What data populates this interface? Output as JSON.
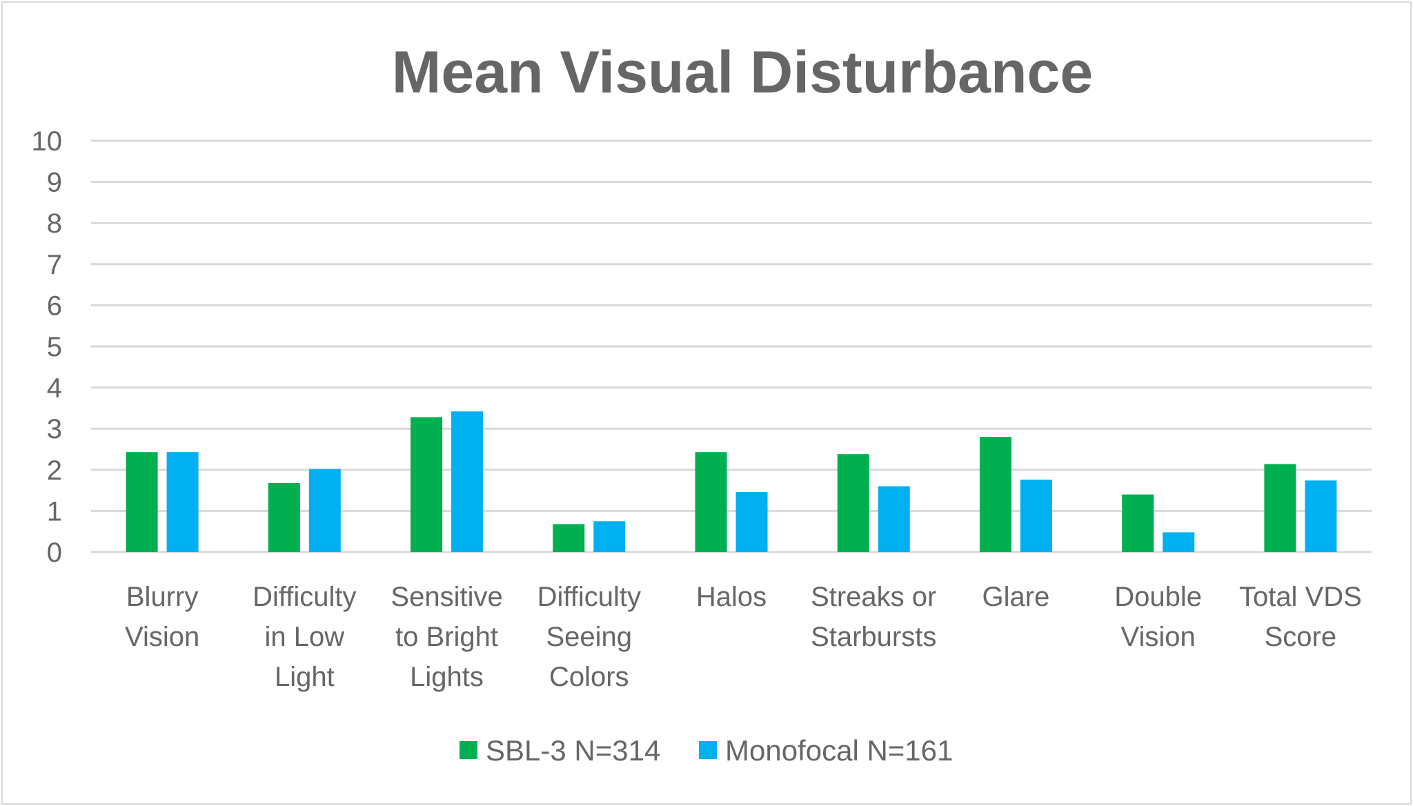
{
  "chart_data": {
    "type": "bar",
    "title": "Mean Visual Disturbance",
    "xlabel": "",
    "ylabel": "",
    "ylim": [
      0,
      10
    ],
    "yticks": [
      "0",
      "1",
      "2",
      "3",
      "4",
      "5",
      "6",
      "7",
      "8",
      "9",
      "10"
    ],
    "grid": true,
    "legend_position": "bottom",
    "categories": [
      [
        "Blurry",
        "Vision"
      ],
      [
        "Difficulty",
        "in Low",
        "Light"
      ],
      [
        "Sensitive",
        "to Bright",
        "Lights"
      ],
      [
        "Difficulty",
        "Seeing",
        "Colors"
      ],
      [
        "Halos"
      ],
      [
        "Streaks or",
        "Starbursts"
      ],
      [
        "Glare"
      ],
      [
        "Double",
        "Vision"
      ],
      [
        "Total VDS",
        "Score"
      ]
    ],
    "series": [
      {
        "name": "SBL-3 N=314",
        "color": "#00b050",
        "values": [
          2.43,
          1.68,
          3.28,
          0.68,
          2.43,
          2.38,
          2.8,
          1.4,
          2.14
        ]
      },
      {
        "name": "Monofocal N=161",
        "color": "#00b0f0",
        "values": [
          2.43,
          2.02,
          3.42,
          0.75,
          1.46,
          1.6,
          1.76,
          0.48,
          1.74
        ]
      }
    ]
  }
}
